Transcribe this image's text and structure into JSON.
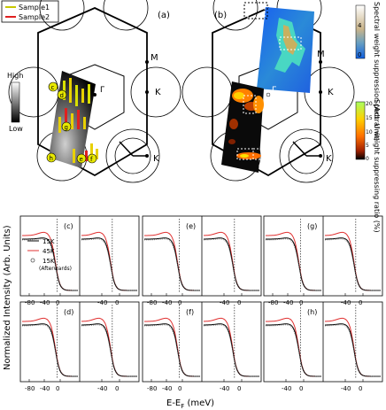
{
  "legend_top": {
    "items": [
      {
        "label": "Sample1",
        "color": "#c8c800"
      },
      {
        "label": "Sample2",
        "color": "#e02020"
      }
    ]
  },
  "panel_a": {
    "label": "(a)",
    "point_labels": [
      "M",
      "K",
      "Γ",
      "K"
    ],
    "cut_labels": [
      "c",
      "d",
      "g",
      "h",
      "e",
      "f"
    ],
    "scale": {
      "high": "High",
      "low": "Low"
    }
  },
  "panel_b": {
    "label": "(b)",
    "point_labels": [
      "M",
      "K",
      "Γ",
      "K"
    ],
    "cbar1": {
      "title": "Spectral weight suppression (Arb. Unit)",
      "tick_max": "4",
      "tick_min": "0"
    },
    "cbar2": {
      "title": "Spectral weight suppressing ratio (%)",
      "ticks": [
        "20",
        "15",
        "10",
        "5",
        "0"
      ]
    }
  },
  "spectra": {
    "ylabel": "Normalized Intensity  (Arb. Units)",
    "xlabel": "E-E",
    "xlabel_sub": "F",
    "xlabel_unit": " (meV)",
    "series": [
      {
        "name": "15K",
        "color": "#000000"
      },
      {
        "name": "45K",
        "color": "#e03030"
      },
      {
        "name": "15K",
        "sub": "(Afterwards)",
        "color": "#555555"
      }
    ],
    "panels": [
      {
        "label": "(c)",
        "ticks_left": [
          "-80",
          "-40",
          "0"
        ],
        "ticks_right": [
          "-40",
          "0"
        ]
      },
      {
        "label": "(e)",
        "ticks_left": [
          "-80",
          "-40",
          "0"
        ],
        "ticks_right": [
          "-40",
          "0"
        ]
      },
      {
        "label": "(g)",
        "ticks_left": [
          "-80",
          "-40",
          "0"
        ],
        "ticks_right": [
          "-40",
          "0"
        ]
      },
      {
        "label": "(d)",
        "ticks_left": [
          "-80",
          "-40",
          "0"
        ],
        "ticks_right": [
          "-40",
          "0"
        ]
      },
      {
        "label": "(f)",
        "ticks_left": [
          "-80",
          "-40",
          "0"
        ],
        "ticks_right": [
          "-40",
          "0"
        ]
      },
      {
        "label": "(h)",
        "ticks_left": [
          "-40",
          "0"
        ],
        "ticks_right": [
          "-40",
          "0"
        ]
      }
    ]
  }
}
